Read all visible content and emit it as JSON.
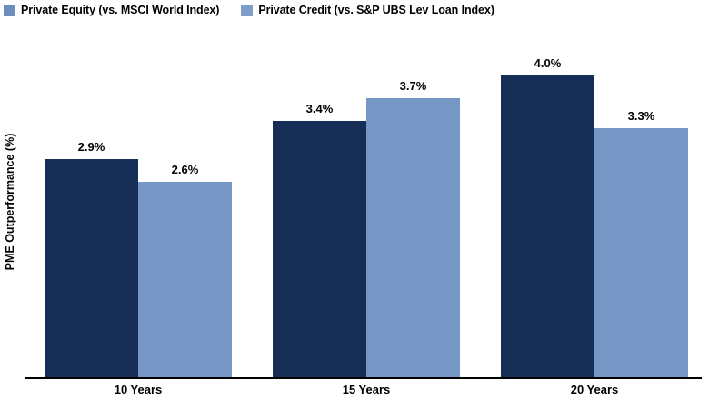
{
  "chart_data": {
    "type": "bar",
    "categories": [
      "10 Years",
      "15 Years",
      "20 Years"
    ],
    "series": [
      {
        "name": "Private Equity (vs. MSCI World Index)",
        "values": [
          2.9,
          3.4,
          4.0
        ],
        "data_labels": [
          "2.9%",
          "3.4%",
          "4.0%"
        ],
        "bar_color": "#162D56"
      },
      {
        "name": "Private Credit (vs. S&P UBS Lev Loan Index)",
        "values": [
          2.6,
          3.7,
          3.3
        ],
        "data_labels": [
          "2.6%",
          "3.7%",
          "3.3%"
        ],
        "bar_color": "#7697C6"
      }
    ],
    "title": "",
    "xlabel": "",
    "ylabel": "PME Outperformance (%)",
    "ylim": [
      0,
      4.3
    ],
    "grid": false,
    "data_labels_shown": true,
    "legend_position": "top-left"
  },
  "legend": {
    "items": [
      {
        "label": "Private Equity (vs. MSCI World Index)",
        "swatch_color": "#6B8EBD"
      },
      {
        "label": "Private Credit (vs. S&P UBS Lev Loan Index)",
        "swatch_color": "#7E9DC9"
      }
    ]
  },
  "axis": {
    "baseline_color": "#000000"
  },
  "colors": {
    "background": "#FFFFFF",
    "text": "#000000",
    "private_equity_bar": "#162D56",
    "private_credit_bar": "#7697C6"
  }
}
